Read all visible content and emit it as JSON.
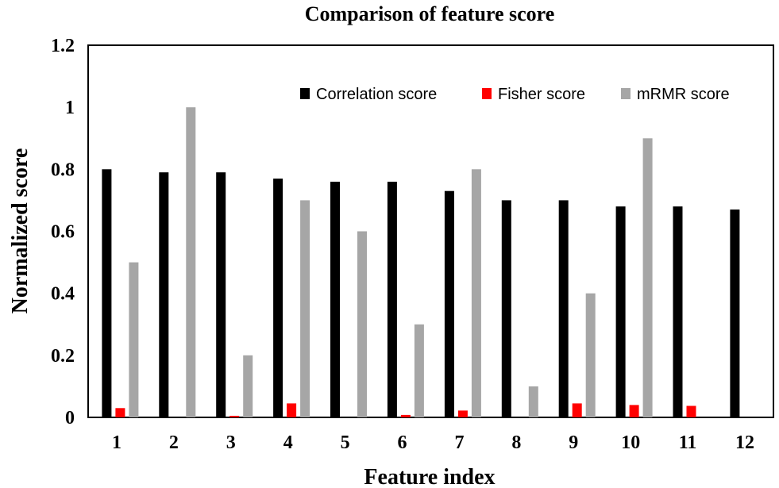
{
  "chart_data": {
    "type": "bar",
    "title": "Comparison of feature score",
    "xlabel": "Feature index",
    "ylabel": "Normalized score",
    "ylim": [
      0,
      1.2
    ],
    "yticks": [
      "0",
      "0.2",
      "0.4",
      "0.6",
      "0.8",
      "1",
      "1.2"
    ],
    "categories": [
      "1",
      "2",
      "3",
      "4",
      "5",
      "6",
      "7",
      "8",
      "9",
      "10",
      "11",
      "12"
    ],
    "legend_position": "top-right",
    "grid": false,
    "series": [
      {
        "name": "Correlation score",
        "color": "#000000",
        "values": [
          0.8,
          0.79,
          0.79,
          0.77,
          0.76,
          0.76,
          0.73,
          0.7,
          0.7,
          0.68,
          0.68,
          0.67
        ]
      },
      {
        "name": "Fisher score",
        "color": "#ff0000",
        "values": [
          0.03,
          0.0,
          0.005,
          0.045,
          0.0,
          0.008,
          0.022,
          0.0,
          0.045,
          0.04,
          0.037,
          0.0
        ]
      },
      {
        "name": "mRMR score",
        "color": "#a6a6a6",
        "values": [
          0.5,
          1.0,
          0.2,
          0.7,
          0.6,
          0.3,
          0.8,
          0.1,
          0.4,
          0.9,
          0.0,
          0.0
        ]
      }
    ]
  }
}
